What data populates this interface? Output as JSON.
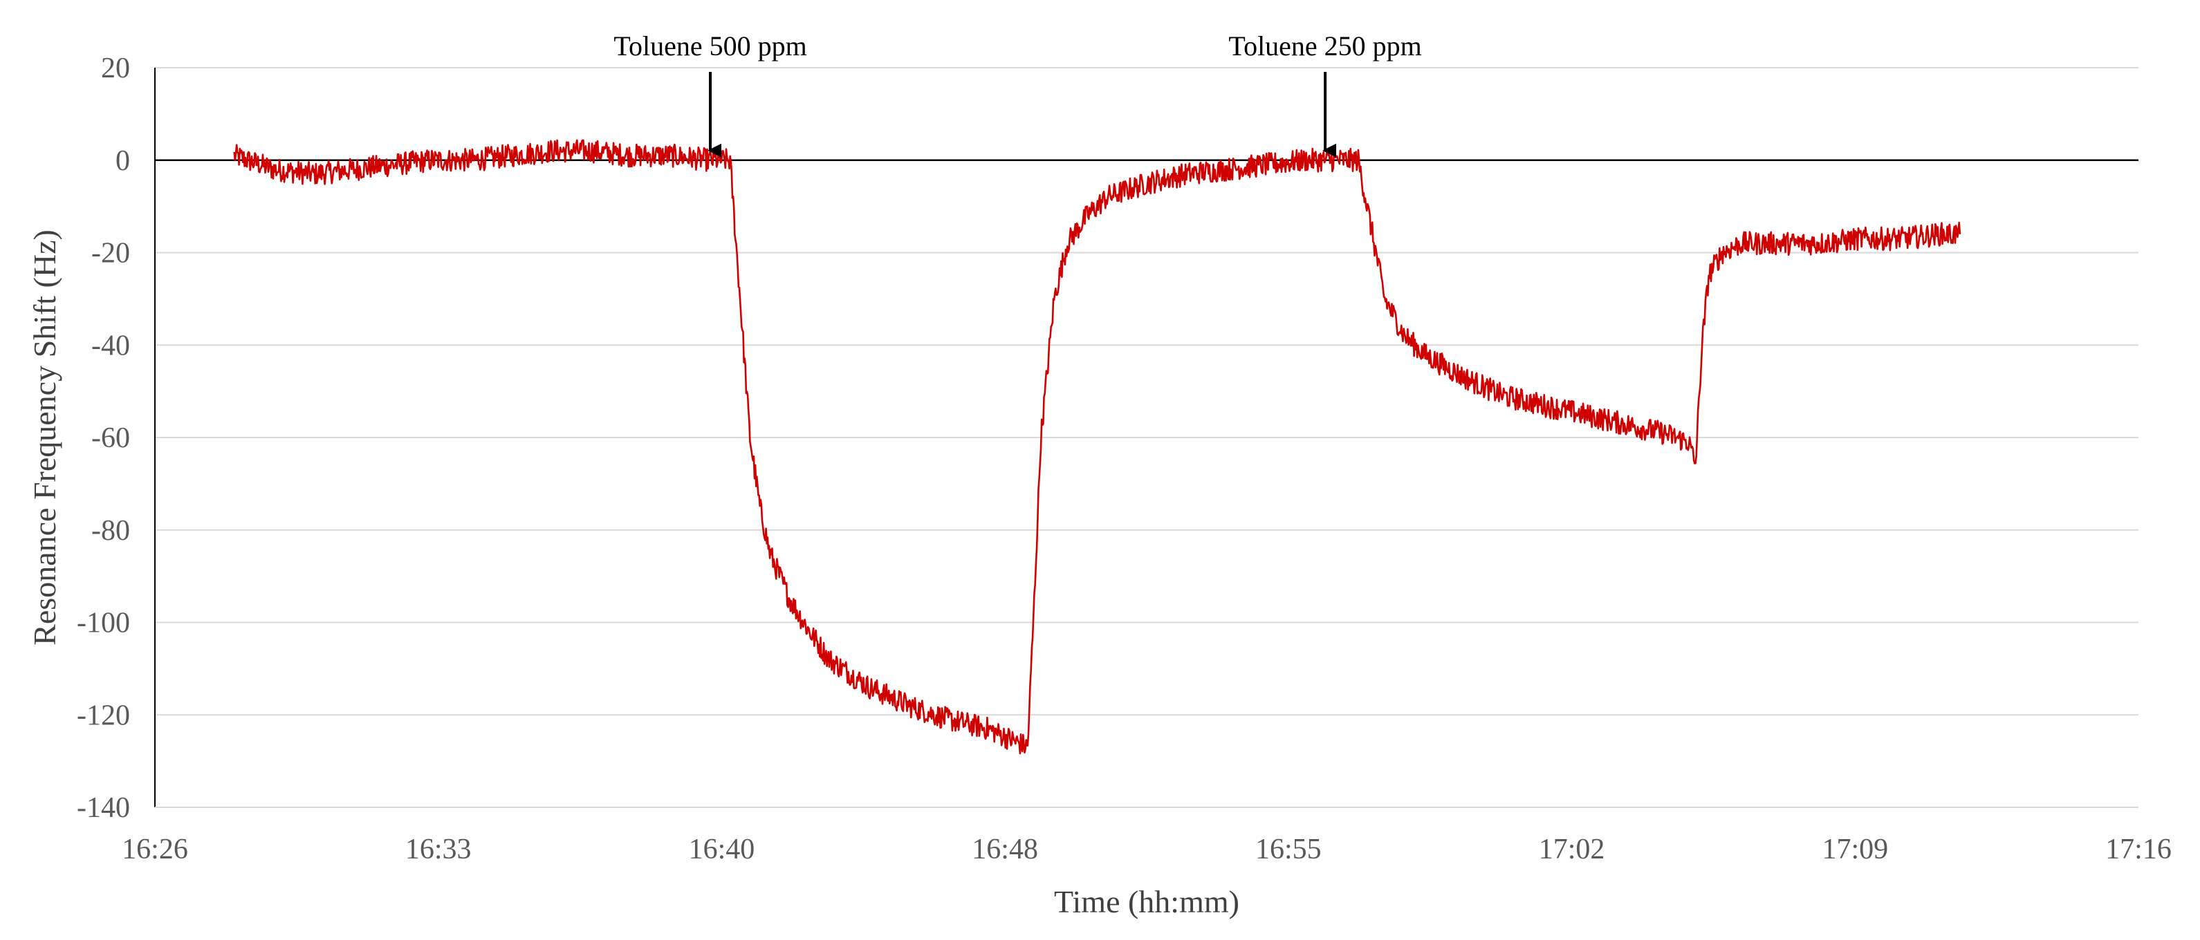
{
  "chart_data": {
    "type": "line",
    "xlabel": "Time (hh:mm)",
    "ylabel": "Resonance Frequency Shift (Hz)",
    "xlim": [
      "16:26",
      "17:16"
    ],
    "ylim": [
      -140,
      20
    ],
    "x_ticks": [
      "16:26",
      "16:33",
      "16:40",
      "16:48",
      "16:55",
      "17:02",
      "17:09",
      "17:16"
    ],
    "y_ticks": [
      20,
      0,
      -20,
      -40,
      -60,
      -80,
      -100,
      -120,
      -140
    ],
    "grid": "horizontal",
    "legend": "none",
    "series": [
      {
        "color": "#d00000",
        "x": [
          "16:28:00",
          "16:29:00",
          "16:30:00",
          "16:31:00",
          "16:32:00",
          "16:33:00",
          "16:34:00",
          "16:35:00",
          "16:36:00",
          "16:37:00",
          "16:38:00",
          "16:39:00",
          "16:40:00",
          "16:40:30",
          "16:40:45",
          "16:41:00",
          "16:41:15",
          "16:41:30",
          "16:42:00",
          "16:42:30",
          "16:43:00",
          "16:44:00",
          "16:45:00",
          "16:46:00",
          "16:47:00",
          "16:47:30",
          "16:47:45",
          "16:48:00",
          "16:48:10",
          "16:48:20",
          "16:48:40",
          "16:49:00",
          "16:49:30",
          "16:50:00",
          "16:51:00",
          "16:52:00",
          "16:53:00",
          "16:54:00",
          "16:55:00",
          "16:56:00",
          "16:56:20",
          "16:56:40",
          "16:57:00",
          "16:57:30",
          "16:58:00",
          "16:59:00",
          "17:00:00",
          "17:01:00",
          "17:02:00",
          "17:03:00",
          "17:04:00",
          "17:04:40",
          "17:04:50",
          "17:05:00",
          "17:05:10",
          "17:05:30",
          "17:06:00",
          "17:07:00",
          "17:08:00",
          "17:09:00",
          "17:10:00",
          "17:11:00",
          "17:11:30"
        ],
        "y": [
          1,
          -2,
          -3,
          -2,
          -1,
          0,
          0,
          1,
          2,
          2,
          1,
          1,
          0,
          0,
          -30,
          -60,
          -75,
          -85,
          -95,
          -102,
          -108,
          -114,
          -118,
          -121,
          -123,
          -125,
          -126,
          -127,
          -95,
          -60,
          -30,
          -18,
          -12,
          -8,
          -5,
          -3,
          -2,
          -1,
          0,
          0,
          0,
          -15,
          -30,
          -38,
          -42,
          -47,
          -51,
          -53,
          -55,
          -57,
          -59,
          -61,
          -66,
          -40,
          -25,
          -20,
          -18,
          -18,
          -18,
          -17,
          -17,
          -16,
          -16
        ]
      }
    ],
    "annotations": [
      {
        "text": "Toluene 500 ppm",
        "x": "16:40:00",
        "y": 0
      },
      {
        "text": "Toluene 250 ppm",
        "x": "16:55:30",
        "y": 0
      }
    ]
  }
}
